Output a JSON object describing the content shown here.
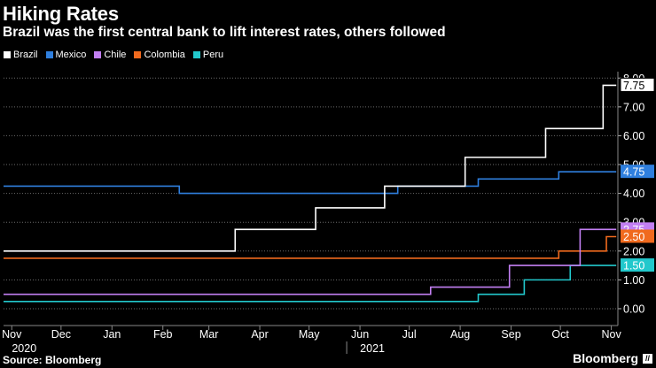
{
  "title": "Hiking Rates",
  "subtitle": "Brazil was the first central bank to lift interest rates, others followed",
  "source": "Source: Bloomberg",
  "brand": "Bloomberg",
  "brand_mark": "//",
  "colors": {
    "Brazil": "#ffffff",
    "Mexico": "#2f7fde",
    "Chile": "#c27ff2",
    "Colombia": "#f06a1e",
    "Peru": "#22c8cc",
    "grid": "#6b6b6b",
    "background": "#000000"
  },
  "chart_data": {
    "type": "line",
    "step": true,
    "title": "Hiking Rates",
    "subtitle": "Brazil was the first central bank to lift interest rates, others followed",
    "xlim": [
      "2020-10-27",
      "2021-11-05"
    ],
    "ylim": [
      -0.4,
      8.1
    ],
    "x_ticks": [
      {
        "date": "2020-11-01",
        "label": "Nov"
      },
      {
        "date": "2020-12-01",
        "label": "Dec"
      },
      {
        "date": "2021-01-01",
        "label": "Jan"
      },
      {
        "date": "2021-02-01",
        "label": "Feb"
      },
      {
        "date": "2021-03-01",
        "label": "Mar"
      },
      {
        "date": "2021-04-01",
        "label": "Apr"
      },
      {
        "date": "2021-05-01",
        "label": "May"
      },
      {
        "date": "2021-06-01",
        "label": "Jun"
      },
      {
        "date": "2021-07-01",
        "label": "Jul"
      },
      {
        "date": "2021-08-01",
        "label": "Aug"
      },
      {
        "date": "2021-09-01",
        "label": "Sep"
      },
      {
        "date": "2021-10-01",
        "label": "Oct"
      },
      {
        "date": "2021-11-01",
        "label": "Nov"
      }
    ],
    "year_labels": [
      {
        "date": "2020-11-01",
        "label": "2020"
      },
      {
        "date": "2021-06-01",
        "label": "2021"
      }
    ],
    "y_ticks": [
      {
        "value": 0,
        "label": "0.00"
      },
      {
        "value": 1,
        "label": "1.00"
      },
      {
        "value": 2,
        "label": "2.00"
      },
      {
        "value": 3,
        "label": "3.00"
      },
      {
        "value": 4,
        "label": "4.00"
      },
      {
        "value": 5,
        "label": "5.00"
      },
      {
        "value": 6,
        "label": "6.00"
      },
      {
        "value": 7,
        "label": "7.00"
      },
      {
        "value": 8,
        "label": "8.00"
      }
    ],
    "grid": true,
    "legend_position": "top-left",
    "series": [
      {
        "name": "Brazil",
        "color": "#ffffff",
        "end_label": "7.75",
        "points": [
          [
            "2020-10-27",
            2.0
          ],
          [
            "2021-03-17",
            2.75
          ],
          [
            "2021-05-05",
            3.5
          ],
          [
            "2021-06-16",
            4.25
          ],
          [
            "2021-08-04",
            5.25
          ],
          [
            "2021-09-22",
            6.25
          ],
          [
            "2021-10-27",
            7.75
          ],
          [
            "2021-11-04",
            7.75
          ]
        ]
      },
      {
        "name": "Mexico",
        "color": "#2f7fde",
        "end_label": "4.75",
        "points": [
          [
            "2020-10-27",
            4.25
          ],
          [
            "2021-02-11",
            4.0
          ],
          [
            "2021-06-24",
            4.25
          ],
          [
            "2021-08-12",
            4.5
          ],
          [
            "2021-09-30",
            4.75
          ],
          [
            "2021-11-04",
            4.75
          ]
        ]
      },
      {
        "name": "Chile",
        "color": "#c27ff2",
        "end_label": "2.75",
        "points": [
          [
            "2020-10-27",
            0.5
          ],
          [
            "2021-07-14",
            0.75
          ],
          [
            "2021-08-31",
            1.5
          ],
          [
            "2021-10-13",
            2.75
          ],
          [
            "2021-11-04",
            2.75
          ]
        ]
      },
      {
        "name": "Colombia",
        "color": "#f06a1e",
        "end_label": "2.50",
        "points": [
          [
            "2020-10-27",
            1.75
          ],
          [
            "2021-09-30",
            2.0
          ],
          [
            "2021-10-29",
            2.5
          ],
          [
            "2021-11-04",
            2.5
          ]
        ]
      },
      {
        "name": "Peru",
        "color": "#22c8cc",
        "end_label": "1.50",
        "points": [
          [
            "2020-10-27",
            0.25
          ],
          [
            "2021-08-12",
            0.5
          ],
          [
            "2021-09-09",
            1.0
          ],
          [
            "2021-10-07",
            1.5
          ],
          [
            "2021-11-04",
            1.5
          ]
        ]
      }
    ]
  }
}
